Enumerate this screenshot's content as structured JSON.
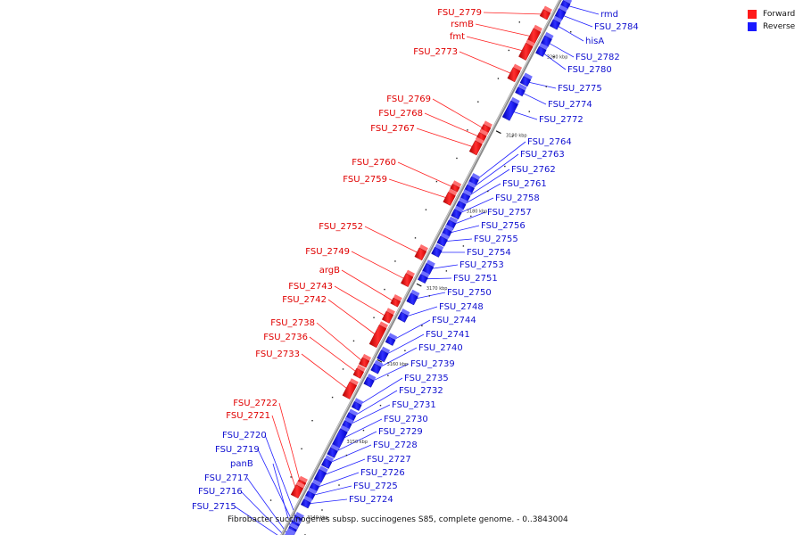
{
  "legend": {
    "forward_label": "Forward",
    "reverse_label": "Reverse",
    "forward_color": "#ff1a1a",
    "reverse_color": "#1a1aff"
  },
  "caption": "Fibrobacter succinogenes subsp. succinogenes S85, complete genome. - 0..3843004",
  "ticks": [
    {
      "label": "3140 kbp",
      "t": 0.95
    },
    {
      "label": "3150 kbp",
      "t": 0.81
    },
    {
      "label": "3160 kbp",
      "t": 0.667
    },
    {
      "label": "3170 kbp",
      "t": 0.527
    },
    {
      "label": "3180 kbp",
      "t": 0.385
    },
    {
      "label": "3190 kbp",
      "t": 0.245
    },
    {
      "label": "3200 kbp",
      "t": 0.1
    }
  ],
  "forward_genes": [
    {
      "label": "FSU_2779",
      "t": 0.033,
      "len": 0.012
    },
    {
      "label": "rsmB",
      "t": 0.068,
      "len": 0.025
    },
    {
      "label": "fmt",
      "t": 0.095,
      "len": 0.025
    },
    {
      "label": "FSU_2773",
      "t": 0.14,
      "len": 0.02
    },
    {
      "label": "FSU_2769",
      "t": 0.245,
      "len": 0.012
    },
    {
      "label": "FSU_2768",
      "t": 0.26,
      "len": 0.012
    },
    {
      "label": "FSU_2767",
      "t": 0.275,
      "len": 0.02
    },
    {
      "label": "FSU_2760",
      "t": 0.355,
      "len": 0.008
    },
    {
      "label": "FSU_2759",
      "t": 0.37,
      "len": 0.018
    },
    {
      "label": "FSU_2752",
      "t": 0.473,
      "len": 0.016
    },
    {
      "label": "FSU_2749",
      "t": 0.52,
      "len": 0.018
    },
    {
      "label": "argB",
      "t": 0.565,
      "len": 0.01
    },
    {
      "label": "FSU_2743",
      "t": 0.59,
      "len": 0.015
    },
    {
      "label": "FSU_2742",
      "t": 0.615,
      "len": 0.035
    },
    {
      "label": "FSU_2738",
      "t": 0.675,
      "len": 0.012
    },
    {
      "label": "FSU_2736",
      "t": 0.695,
      "len": 0.012
    },
    {
      "label": "FSU_2733",
      "t": 0.72,
      "len": 0.025
    },
    {
      "label": "FSU_2722",
      "t": 0.9,
      "len": 0.01
    },
    {
      "label": "FSU_2721",
      "t": 0.91,
      "len": 0.018
    }
  ],
  "reverse_genes": [
    {
      "label": "rmd",
      "t": 0.005,
      "len": 0.01
    },
    {
      "label": "FSU_2784",
      "t": 0.02,
      "len": 0.015
    },
    {
      "label": "hisA",
      "t": 0.04,
      "len": 0.012
    },
    {
      "label": "FSU_2782",
      "t": 0.07,
      "len": 0.015
    },
    {
      "label": "FSU_2780",
      "t": 0.09,
      "len": 0.012
    },
    {
      "label": "FSU_2775",
      "t": 0.145,
      "len": 0.012
    },
    {
      "label": "FSU_2774",
      "t": 0.165,
      "len": 0.01
    },
    {
      "label": "FSU_2772",
      "t": 0.19,
      "len": 0.03
    },
    {
      "label": "FSU_2764",
      "t": 0.33,
      "len": 0.012
    },
    {
      "label": "FSU_2763",
      "t": 0.345,
      "len": 0.012
    },
    {
      "label": "FSU_2762",
      "t": 0.36,
      "len": 0.012
    },
    {
      "label": "FSU_2761",
      "t": 0.375,
      "len": 0.01
    },
    {
      "label": "FSU_2758",
      "t": 0.39,
      "len": 0.012
    },
    {
      "label": "FSU_2757",
      "t": 0.41,
      "len": 0.012
    },
    {
      "label": "FSU_2756",
      "t": 0.425,
      "len": 0.012
    },
    {
      "label": "FSU_2755",
      "t": 0.44,
      "len": 0.012
    },
    {
      "label": "FSU_2754",
      "t": 0.46,
      "len": 0.012
    },
    {
      "label": "FSU_2753",
      "t": 0.49,
      "len": 0.014
    },
    {
      "label": "FSU_2751",
      "t": 0.51,
      "len": 0.01
    },
    {
      "label": "FSU_2750",
      "t": 0.545,
      "len": 0.015
    },
    {
      "label": "FSU_2748",
      "t": 0.58,
      "len": 0.012
    },
    {
      "label": "FSU_2744",
      "t": 0.625,
      "len": 0.01
    },
    {
      "label": "FSU_2741",
      "t": 0.65,
      "len": 0.015
    },
    {
      "label": "FSU_2740",
      "t": 0.675,
      "len": 0.012
    },
    {
      "label": "FSU_2739",
      "t": 0.7,
      "len": 0.012
    },
    {
      "label": "FSU_2735",
      "t": 0.745,
      "len": 0.01
    },
    {
      "label": "FSU_2732",
      "t": 0.765,
      "len": 0.012
    },
    {
      "label": "FSU_2731",
      "t": 0.78,
      "len": 0.012
    },
    {
      "label": "FSU_2730",
      "t": 0.795,
      "len": 0.035
    },
    {
      "label": "FSU_2729",
      "t": 0.83,
      "len": 0.012
    },
    {
      "label": "FSU_2728",
      "t": 0.85,
      "len": 0.012
    },
    {
      "label": "FSU_2727",
      "t": 0.87,
      "len": 0.018
    },
    {
      "label": "FSU_2726",
      "t": 0.895,
      "len": 0.012
    },
    {
      "label": "FSU_2725",
      "t": 0.91,
      "len": 0.01
    },
    {
      "label": "FSU_2724",
      "t": 0.925,
      "len": 0.01
    },
    {
      "label": "FSU_2720",
      "t": 0.955,
      "len": 0.012
    },
    {
      "label": "FSU_2719",
      "t": 0.965,
      "len": 0.012
    },
    {
      "label": "panB",
      "t": 0.975,
      "len": 0.012
    },
    {
      "label": "FSU_2717",
      "t": 0.985,
      "len": 0.01
    },
    {
      "label": "FSU_2716",
      "t": 0.99,
      "len": 0.01
    },
    {
      "label": "FSU_2715",
      "t": 0.995,
      "len": 0.008
    }
  ]
}
